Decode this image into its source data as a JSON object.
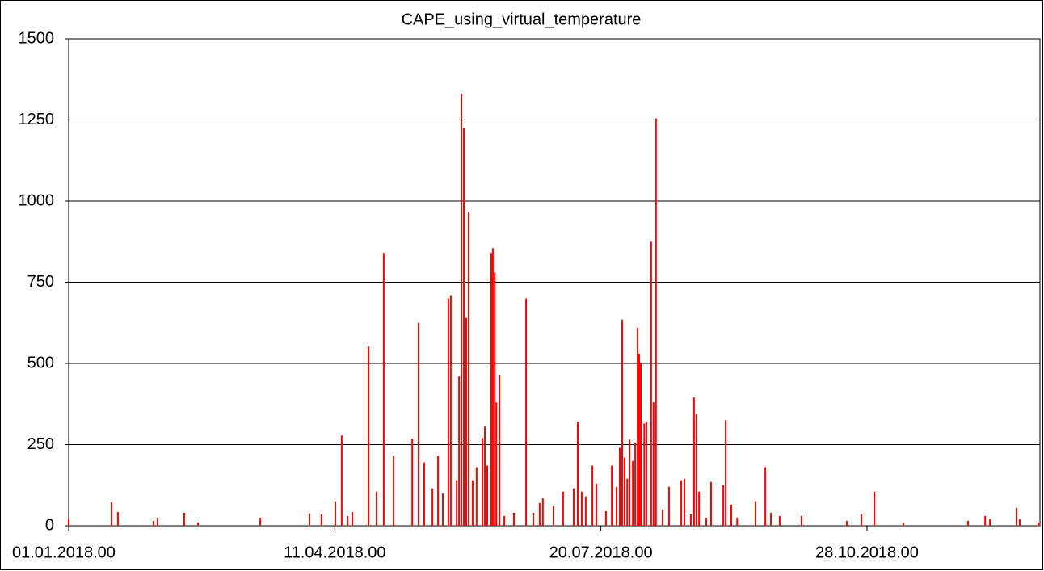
{
  "chart_data": {
    "type": "bar",
    "title": "CAPE_using_virtual_temperature",
    "color": "#ff0000",
    "x": [
      0,
      16.1,
      18.5,
      31.9,
      33.4,
      43.4,
      48.6,
      72,
      90.5,
      95,
      100.2,
      102.6,
      104.8,
      106.6,
      112.7,
      115.7,
      118.4,
      122.1,
      129.1,
      131.5,
      133.6,
      136.7,
      138.8,
      140.6,
      142.7,
      143.6,
      145.8,
      146.7,
      147.6,
      148.5,
      149.4,
      150.3,
      151.8,
      153.3,
      155.5,
      156.4,
      157.3,
      158.8,
      159.4,
      160.1,
      160.7,
      161.9,
      163.7,
      167.3,
      171.9,
      174.6,
      177,
      178.2,
      182.2,
      185.8,
      189.8,
      191.3,
      192.8,
      194.3,
      196.8,
      198.3,
      201.9,
      204.1,
      205.9,
      207.1,
      208,
      208.9,
      209.9,
      210.8,
      212,
      212.9,
      213.8,
      214.4,
      215,
      216.3,
      217.1,
      218.9,
      219.8,
      220.7,
      223.2,
      225.6,
      230.2,
      231.4,
      233.8,
      235,
      235.9,
      236.9,
      239.6,
      241.4,
      246,
      246.9,
      249,
      251.2,
      258.1,
      261.8,
      263.9,
      267.2,
      275.4,
      292.4,
      297.9,
      302.8,
      313.7,
      338,
      344.4,
      346.2,
      356.2,
      357.4,
      364.4
    ],
    "values": [
      20,
      72,
      42,
      15,
      25,
      40,
      10,
      25,
      38,
      35,
      75,
      278,
      30,
      42,
      552,
      105,
      840,
      215,
      268,
      625,
      195,
      115,
      215,
      100,
      700,
      710,
      140,
      460,
      1330,
      1225,
      640,
      965,
      140,
      180,
      270,
      305,
      185,
      840,
      855,
      780,
      380,
      465,
      30,
      40,
      700,
      40,
      70,
      85,
      60,
      105,
      115,
      320,
      105,
      90,
      185,
      130,
      45,
      185,
      120,
      240,
      635,
      210,
      145,
      265,
      200,
      255,
      610,
      530,
      500,
      315,
      320,
      875,
      380,
      1255,
      50,
      120,
      140,
      145,
      35,
      395,
      345,
      105,
      25,
      135,
      125,
      325,
      65,
      25,
      75,
      180,
      40,
      30,
      30,
      15,
      35,
      105,
      8,
      15,
      30,
      20,
      55,
      20,
      10
    ],
    "xlim": [
      0,
      365
    ],
    "xticks": [
      {
        "value": 0,
        "label": "01.01.2018.00"
      },
      {
        "value": 100,
        "label": "11.04.2018.00"
      },
      {
        "value": 200,
        "label": "20.07.2018.00"
      },
      {
        "value": 300,
        "label": "28.10.2018.00"
      }
    ],
    "ylim": [
      0,
      1500
    ],
    "yticks": [
      0,
      250,
      500,
      750,
      1000,
      1250,
      1500
    ],
    "grid": true
  }
}
